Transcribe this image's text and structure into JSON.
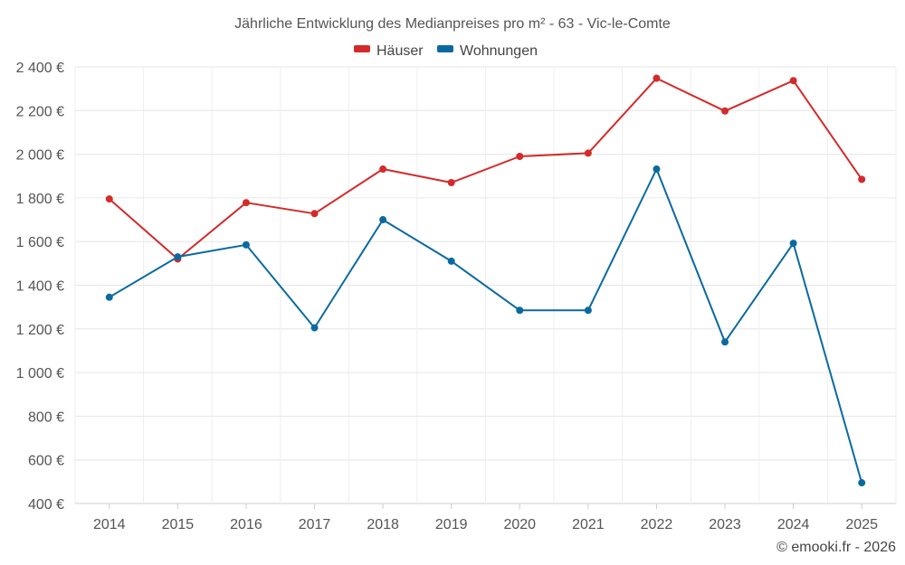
{
  "chart_data": {
    "type": "line",
    "title": "Jährliche Entwicklung des Medianpreises pro m² - 63 - Vic-le-Comte",
    "categories": [
      "2014",
      "2015",
      "2016",
      "2017",
      "2018",
      "2019",
      "2020",
      "2021",
      "2022",
      "2023",
      "2024",
      "2025"
    ],
    "series": [
      {
        "name": "Häuser",
        "color": "#d42a2a",
        "values": [
          1795,
          1520,
          1778,
          1728,
          1932,
          1870,
          1990,
          2005,
          2348,
          2198,
          2337,
          1885
        ]
      },
      {
        "name": "Wohnungen",
        "color": "#0a6aa0",
        "values": [
          1345,
          1530,
          1585,
          1205,
          1700,
          1510,
          1285,
          1285,
          1932,
          1140,
          1592,
          495
        ]
      }
    ],
    "ylim": [
      400,
      2400
    ],
    "yticks": [
      400,
      600,
      800,
      1000,
      1200,
      1400,
      1600,
      1800,
      2000,
      2200,
      2400
    ],
    "ytick_labels": [
      "400 €",
      "600 €",
      "800 €",
      "1 000 €",
      "1 200 €",
      "1 400 €",
      "1 600 €",
      "1 800 €",
      "2 000 €",
      "2 200 €",
      "2 400 €"
    ],
    "xlabel": "",
    "ylabel": "",
    "grid": true,
    "legend_position": "top-center"
  },
  "credit": "© emooki.fr - 2026"
}
